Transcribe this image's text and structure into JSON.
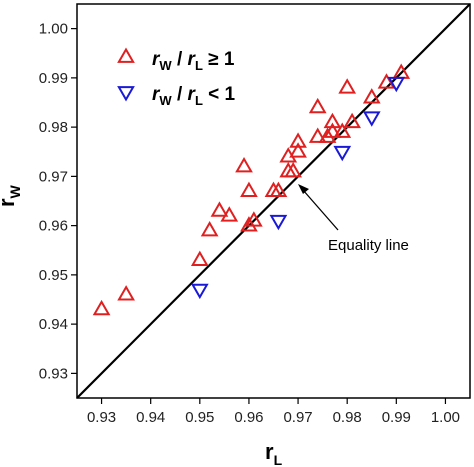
{
  "chart_data": {
    "type": "scatter",
    "title": "",
    "xlabel": {
      "main": "r",
      "sub": "L"
    },
    "ylabel": {
      "main": "r",
      "sub": "W"
    },
    "xlim": [
      0.925,
      1.005
    ],
    "ylim": [
      0.925,
      1.005
    ],
    "xticks": [
      "0.93",
      "0.94",
      "0.95",
      "0.96",
      "0.97",
      "0.98",
      "0.99",
      "1.00"
    ],
    "yticks": [
      "0.93",
      "0.94",
      "0.95",
      "0.96",
      "0.97",
      "0.98",
      "0.99",
      "1.00"
    ],
    "grid": false,
    "legend_position": "top-left",
    "annotation": "Equality line",
    "reference_line": {
      "from": [
        0.925,
        0.925
      ],
      "to": [
        1.005,
        1.005
      ],
      "color": "#000000"
    },
    "series": [
      {
        "legend_parts": [
          "r",
          "W",
          " / ",
          "r",
          "L",
          " ≥ 1"
        ],
        "marker": "triangle-up",
        "color": "#e02020",
        "points": [
          [
            0.93,
            0.943
          ],
          [
            0.935,
            0.946
          ],
          [
            0.95,
            0.953
          ],
          [
            0.952,
            0.959
          ],
          [
            0.954,
            0.963
          ],
          [
            0.956,
            0.962
          ],
          [
            0.959,
            0.972
          ],
          [
            0.96,
            0.967
          ],
          [
            0.96,
            0.96
          ],
          [
            0.961,
            0.961
          ],
          [
            0.965,
            0.967
          ],
          [
            0.966,
            0.967
          ],
          [
            0.968,
            0.974
          ],
          [
            0.968,
            0.971
          ],
          [
            0.969,
            0.971
          ],
          [
            0.97,
            0.977
          ],
          [
            0.97,
            0.975
          ],
          [
            0.974,
            0.978
          ],
          [
            0.974,
            0.984
          ],
          [
            0.976,
            0.978
          ],
          [
            0.977,
            0.981
          ],
          [
            0.977,
            0.979
          ],
          [
            0.979,
            0.979
          ],
          [
            0.98,
            0.988
          ],
          [
            0.981,
            0.981
          ],
          [
            0.985,
            0.986
          ],
          [
            0.988,
            0.989
          ],
          [
            0.991,
            0.991
          ]
        ]
      },
      {
        "legend_parts": [
          "r",
          "W",
          " / ",
          "r",
          "L",
          " < 1"
        ],
        "marker": "triangle-down",
        "color": "#1a1ad6",
        "points": [
          [
            0.95,
            0.947
          ],
          [
            0.966,
            0.961
          ],
          [
            0.979,
            0.975
          ],
          [
            0.985,
            0.982
          ],
          [
            0.99,
            0.989
          ]
        ]
      }
    ]
  }
}
